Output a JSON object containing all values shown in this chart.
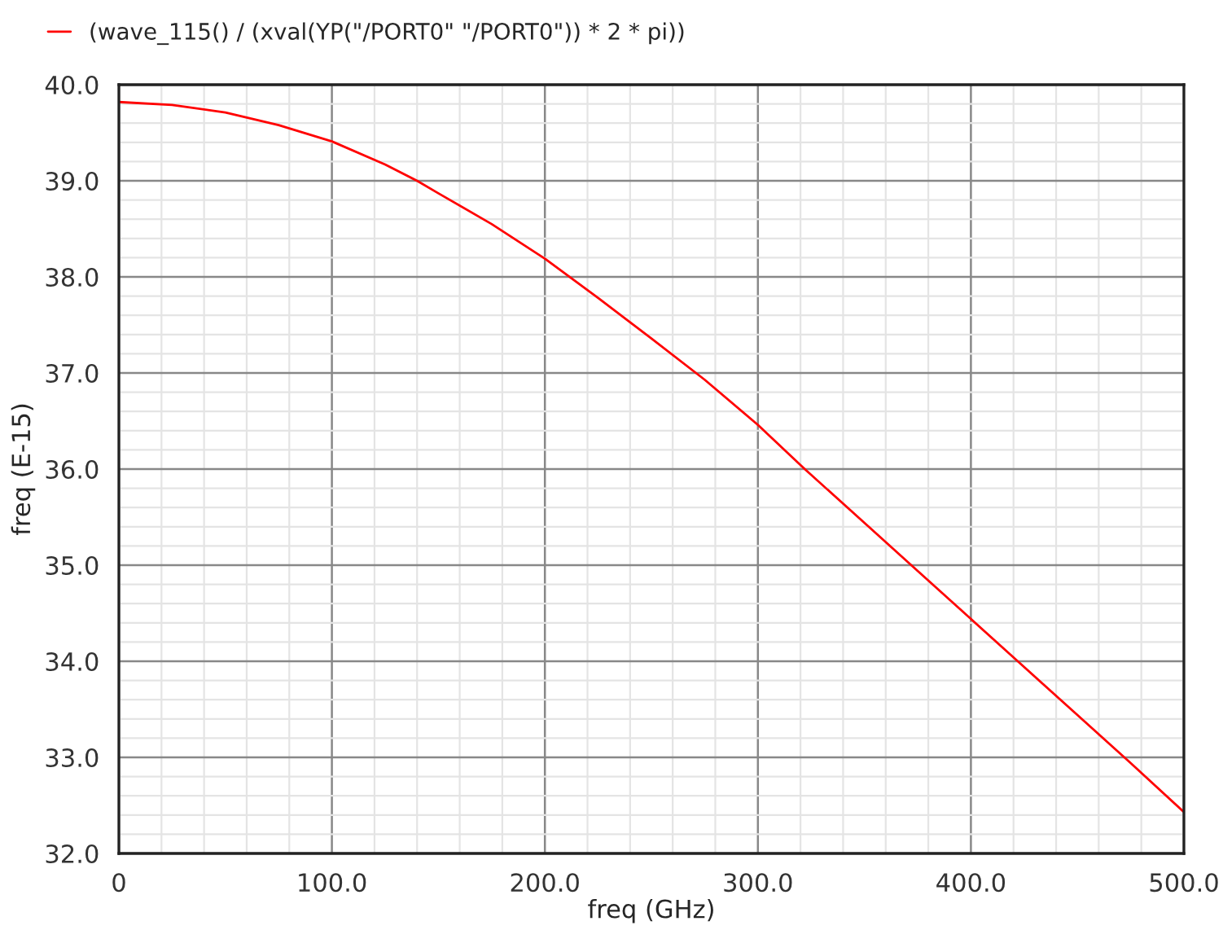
{
  "chart_data": {
    "type": "line",
    "xlabel": "freq (GHz)",
    "ylabel": "freq (E-15)",
    "x": [
      0,
      25,
      50,
      75,
      100,
      125,
      140,
      150,
      175,
      200,
      225,
      250,
      275,
      300,
      322,
      350,
      372,
      400,
      422,
      450,
      475,
      500
    ],
    "series": [
      {
        "name": "(wave_115() / (xval(YP(\"/PORT0\" \"/PORT0\")) * 2 * pi))",
        "color": "#ff0000",
        "values": [
          39.82,
          39.79,
          39.71,
          39.58,
          39.41,
          39.17,
          39.0,
          38.87,
          38.55,
          38.19,
          37.78,
          37.36,
          36.93,
          36.46,
          36.0,
          35.44,
          35.0,
          34.44,
          34.0,
          33.44,
          32.94,
          32.43
        ]
      }
    ],
    "xlim": [
      0,
      500
    ],
    "ylim": [
      32,
      40
    ],
    "xticks": [
      0,
      {
        "value": 100,
        "label": "100.0"
      },
      {
        "value": 200,
        "label": "200.0"
      },
      {
        "value": 300,
        "label": "300.0"
      },
      {
        "value": 400,
        "label": "400.0"
      },
      {
        "value": 500,
        "label": "500.0"
      }
    ],
    "yticks": [
      {
        "value": 32,
        "label": "32.0"
      },
      {
        "value": 33,
        "label": "33.0"
      },
      {
        "value": 34,
        "label": "34.0"
      },
      {
        "value": 35,
        "label": "35.0"
      },
      {
        "value": 36,
        "label": "36.0"
      },
      {
        "value": 37,
        "label": "37.0"
      },
      {
        "value": 38,
        "label": "38.0"
      },
      {
        "value": 39,
        "label": "39.0"
      },
      {
        "value": 40,
        "label": "40.0"
      }
    ],
    "grid": true,
    "legend": "top left",
    "line_style": "solid"
  }
}
